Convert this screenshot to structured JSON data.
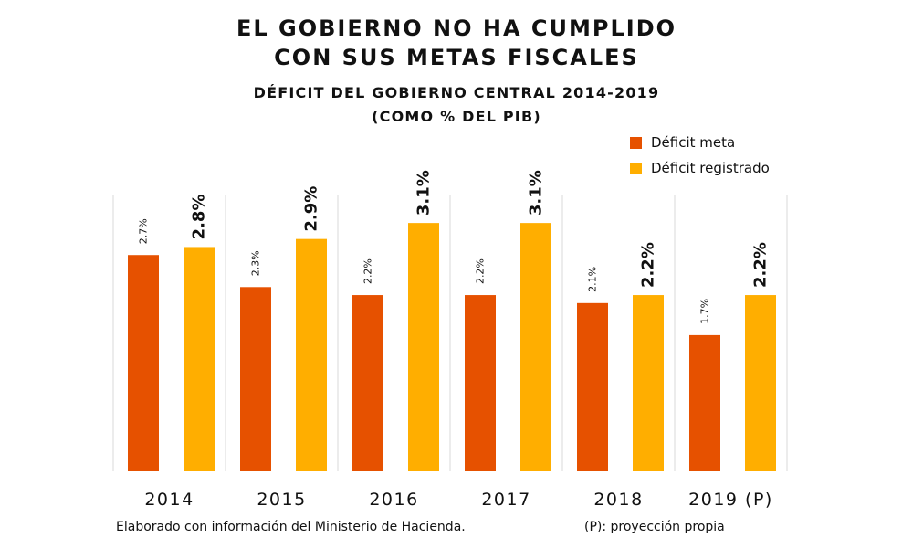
{
  "chart_data": {
    "type": "bar",
    "title": "EL GOBIERNO NO HA CUMPLIDO",
    "title_line2": "CON SUS METAS FISCALES",
    "subtitle": "DÉFICIT DEL GOBIERNO CENTRAL 2014-2019",
    "subtitle_line2": "(COMO % DEL PIB)",
    "categories": [
      "2014",
      "2015",
      "2016",
      "2017",
      "2018",
      "2019 (P)"
    ],
    "series": [
      {
        "name": "Déficit meta",
        "color": "#E65100",
        "values": [
          2.7,
          2.3,
          2.2,
          2.2,
          2.1,
          1.7
        ],
        "labels": [
          "2.7%",
          "2.3%",
          "2.2%",
          "2.2%",
          "2.1%",
          "1.7%"
        ]
      },
      {
        "name": "Déficit registrado",
        "color": "#FFAE00",
        "values": [
          2.8,
          2.9,
          3.1,
          3.1,
          2.2,
          2.2
        ],
        "labels": [
          "2.8%",
          "2.9%",
          "3.1%",
          "3.1%",
          "2.2%",
          "2.2%"
        ]
      }
    ],
    "ylim": [
      0,
      3.5
    ],
    "grid": "vertical separators",
    "legend_position": "top-right",
    "footnote": "Elaborado con información del Ministerio de Hacienda.",
    "footnote_right": "(P): proyección propia"
  }
}
